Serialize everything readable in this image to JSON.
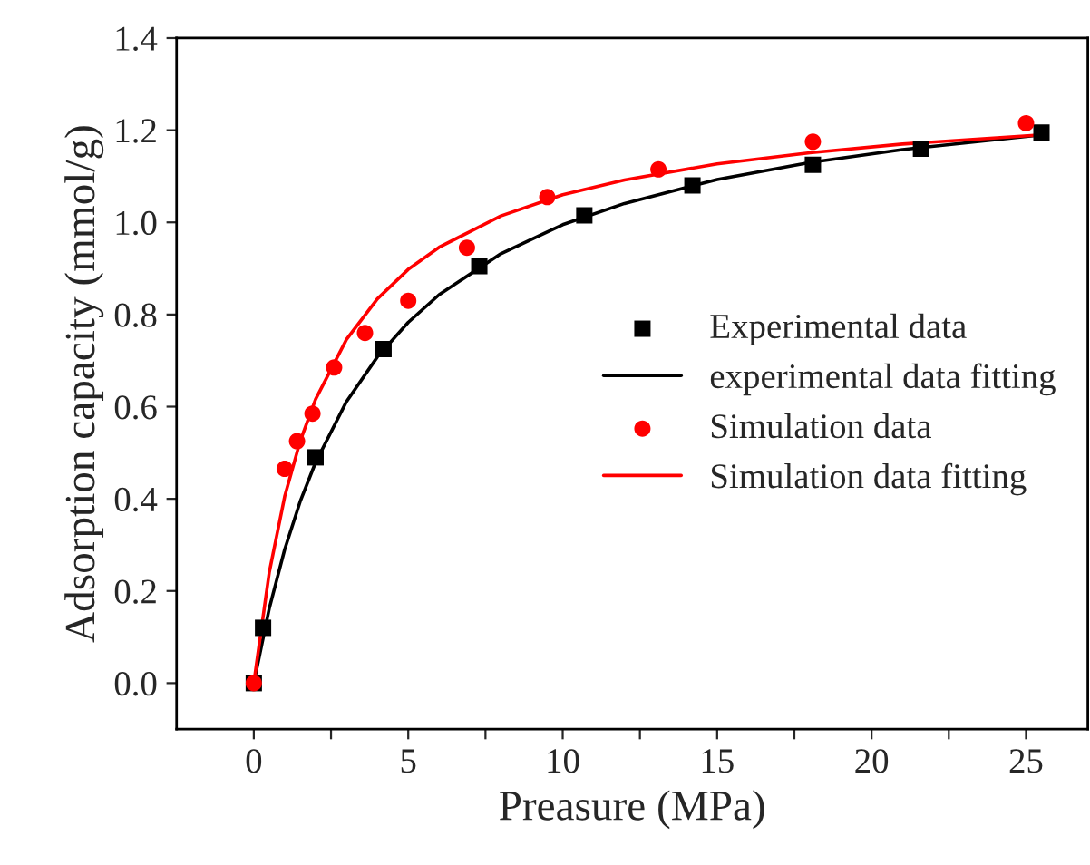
{
  "chart_data": {
    "type": "scatter",
    "xlabel": "Preasure (MPa)",
    "ylabel": "Adsorption capacity (mmol/g)",
    "xlim": [
      -2.5,
      27
    ],
    "ylim": [
      -0.1,
      1.4
    ],
    "xticks": [
      0,
      {
        "value": 2.5,
        "label": null
      },
      5,
      {
        "value": 7.5,
        "label": null
      },
      10,
      {
        "value": 12.5,
        "label": null
      },
      15,
      {
        "value": 17.5,
        "label": null
      },
      20,
      {
        "value": 22.5,
        "label": null
      },
      25
    ],
    "yticks": [
      {
        "value": 0,
        "label": "0.0"
      },
      0.2,
      0.4,
      0.6,
      0.8,
      {
        "value": 1,
        "label": "1.0"
      },
      1.2,
      1.4
    ],
    "legend": "right",
    "grid": false,
    "series": [
      {
        "name": "Experimental data",
        "marker": "square",
        "color": "#000000",
        "x": [
          0,
          0.3,
          2,
          4.2,
          7.3,
          10.7,
          14.2,
          18.1,
          21.6,
          25.5
        ],
        "values": [
          0,
          0.12,
          0.49,
          0.725,
          0.905,
          1.015,
          1.08,
          1.125,
          1.16,
          1.195
        ]
      },
      {
        "name": "experimental data fitting",
        "type": "line",
        "line_style": "solid",
        "color": "#000000",
        "x": [
          0,
          0.5,
          1,
          1.5,
          2,
          3,
          4,
          5,
          6,
          8,
          10,
          12,
          15,
          18,
          21,
          25.5
        ],
        "values": [
          0,
          0.162,
          0.29,
          0.394,
          0.479,
          0.611,
          0.708,
          0.783,
          0.843,
          0.932,
          0.995,
          1.041,
          1.093,
          1.13,
          1.158,
          1.19
        ]
      },
      {
        "name": "Simulation data",
        "marker": "circle",
        "color": "#ff0000",
        "x": [
          0,
          1,
          1.4,
          1.9,
          2.6,
          3.6,
          5,
          6.9,
          9.5,
          13.1,
          18.1,
          25
        ],
        "values": [
          0,
          0.465,
          0.525,
          0.585,
          0.685,
          0.76,
          0.83,
          0.945,
          1.055,
          1.115,
          1.175,
          1.215
        ]
      },
      {
        "name": "Simulation data fitting",
        "type": "line",
        "line_style": "solid",
        "color": "#ff0000",
        "x": [
          0,
          0.5,
          1,
          1.5,
          2,
          3,
          4,
          5,
          6,
          8,
          10,
          12,
          15,
          18,
          21,
          25.5
        ],
        "values": [
          0,
          0.24,
          0.405,
          0.525,
          0.616,
          0.746,
          0.834,
          0.898,
          0.946,
          1.014,
          1.06,
          1.092,
          1.127,
          1.151,
          1.17,
          1.19
        ]
      }
    ]
  }
}
